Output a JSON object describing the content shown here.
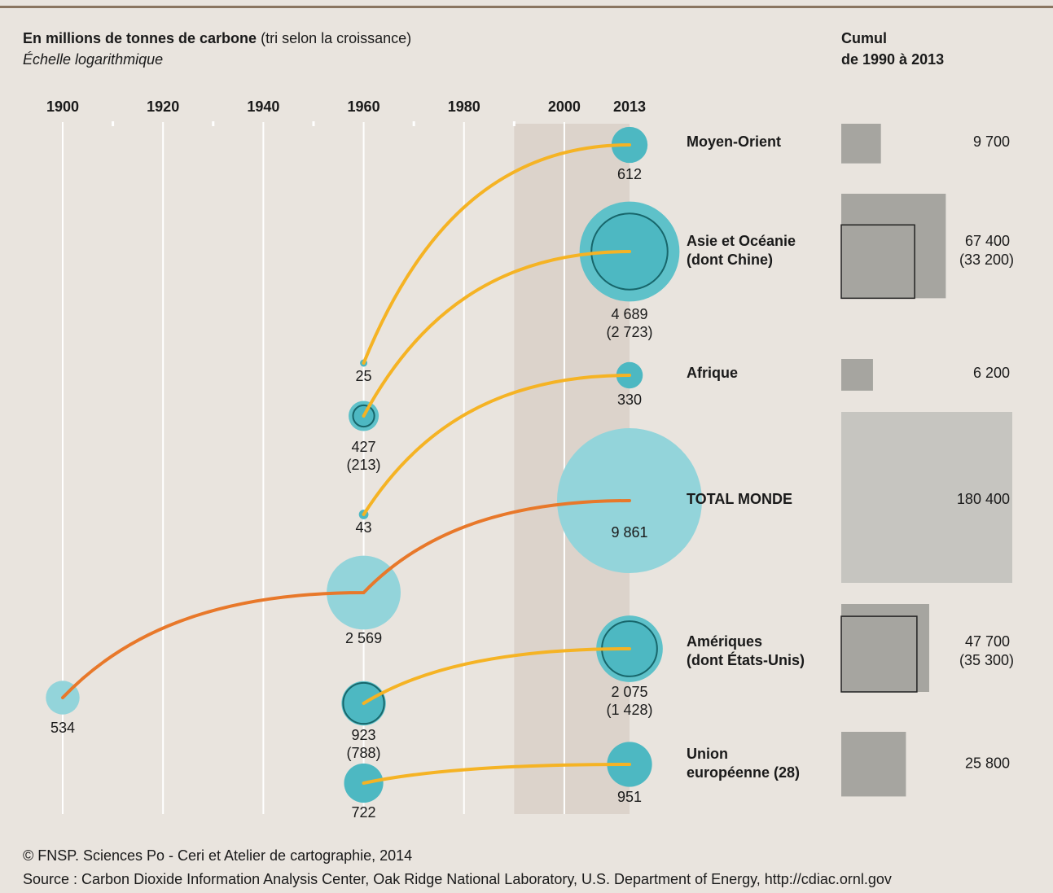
{
  "chart_data": {
    "type": "bubble-timeline",
    "title": "En millions de tonnes de carbone",
    "title_note": "(tri selon la croissance)",
    "subtitle": "Échelle logarithmique",
    "cumul_title": [
      "Cumul",
      "de 1990 à 2013"
    ],
    "xlim": [
      1900,
      2013
    ],
    "xticks": [
      1900,
      1920,
      1940,
      1960,
      1980,
      2000,
      2013
    ],
    "grid_xticks": [
      1900,
      1920,
      1940,
      1960,
      1980,
      2000
    ],
    "minor_xticks": [
      1910,
      1930,
      1950,
      1970,
      1990
    ],
    "highlight": [
      1990,
      2013
    ],
    "rows": [
      {
        "name": [
          "Moyen-Orient"
        ],
        "kind": "region",
        "color": "#f5b324",
        "points": [
          {
            "year": 1960,
            "value": 25
          },
          {
            "year": 2013,
            "value": 612
          }
        ],
        "cumul": {
          "value": 9700,
          "label": "9 700"
        }
      },
      {
        "name": [
          "Asie et Océanie",
          "(dont Chine)"
        ],
        "kind": "region",
        "color": "#f5b324",
        "points": [
          {
            "year": 1960,
            "value": 427,
            "sub": {
              "value": 213,
              "label": "(213)"
            }
          },
          {
            "year": 2013,
            "value": {
              "value": 4689,
              "label": "4 689"
            },
            "sub": {
              "value": 2723,
              "label": "(2 723)"
            }
          }
        ],
        "cumul": {
          "value": 67400,
          "label": "67 400"
        },
        "cumul_sub": {
          "value": 33200,
          "label": "(33 200)"
        }
      },
      {
        "name": [
          "Afrique"
        ],
        "kind": "region",
        "color": "#f5b324",
        "points": [
          {
            "year": 1960,
            "value": 43
          },
          {
            "year": 2013,
            "value": 330
          }
        ],
        "cumul": {
          "value": 6200,
          "label": "6 200"
        }
      },
      {
        "name": [
          "TOTAL MONDE"
        ],
        "kind": "total",
        "color": "#e8782a",
        "points": [
          {
            "year": 1900,
            "value": 534
          },
          {
            "year": 1960,
            "value": {
              "value": 2569,
              "label": "2 569"
            }
          },
          {
            "year": 2013,
            "value": {
              "value": 9861,
              "label": "9 861"
            }
          }
        ],
        "cumul": {
          "value": 180400,
          "label": "180 400"
        }
      },
      {
        "name": [
          "Amériques",
          "(dont États-Unis)"
        ],
        "kind": "region",
        "color": "#f5b324",
        "points": [
          {
            "year": 1960,
            "value": 923,
            "sub": {
              "value": 788,
              "label": "(788)"
            }
          },
          {
            "year": 2013,
            "value": {
              "value": 2075,
              "label": "2 075"
            },
            "sub": {
              "value": 1428,
              "label": "(1 428)"
            }
          }
        ],
        "cumul": {
          "value": 47700,
          "label": "47 700"
        },
        "cumul_sub": {
          "value": 35300,
          "label": "(35 300)"
        }
      },
      {
        "name": [
          "Union",
          "européenne (28)"
        ],
        "kind": "region",
        "color": "#f5b324",
        "points": [
          {
            "year": 1960,
            "value": 722
          },
          {
            "year": 2013,
            "value": 951
          }
        ],
        "cumul": {
          "value": 25800,
          "label": "25 800"
        }
      }
    ],
    "credit": "© FNSP. Sciences Po - Ceri et Atelier de cartographie, 2014",
    "source": "Source : Carbon Dioxide Information Analysis Center, Oak Ridge National Laboratory, U.S. Department of Energy, http://cdiac.ornl.gov"
  }
}
